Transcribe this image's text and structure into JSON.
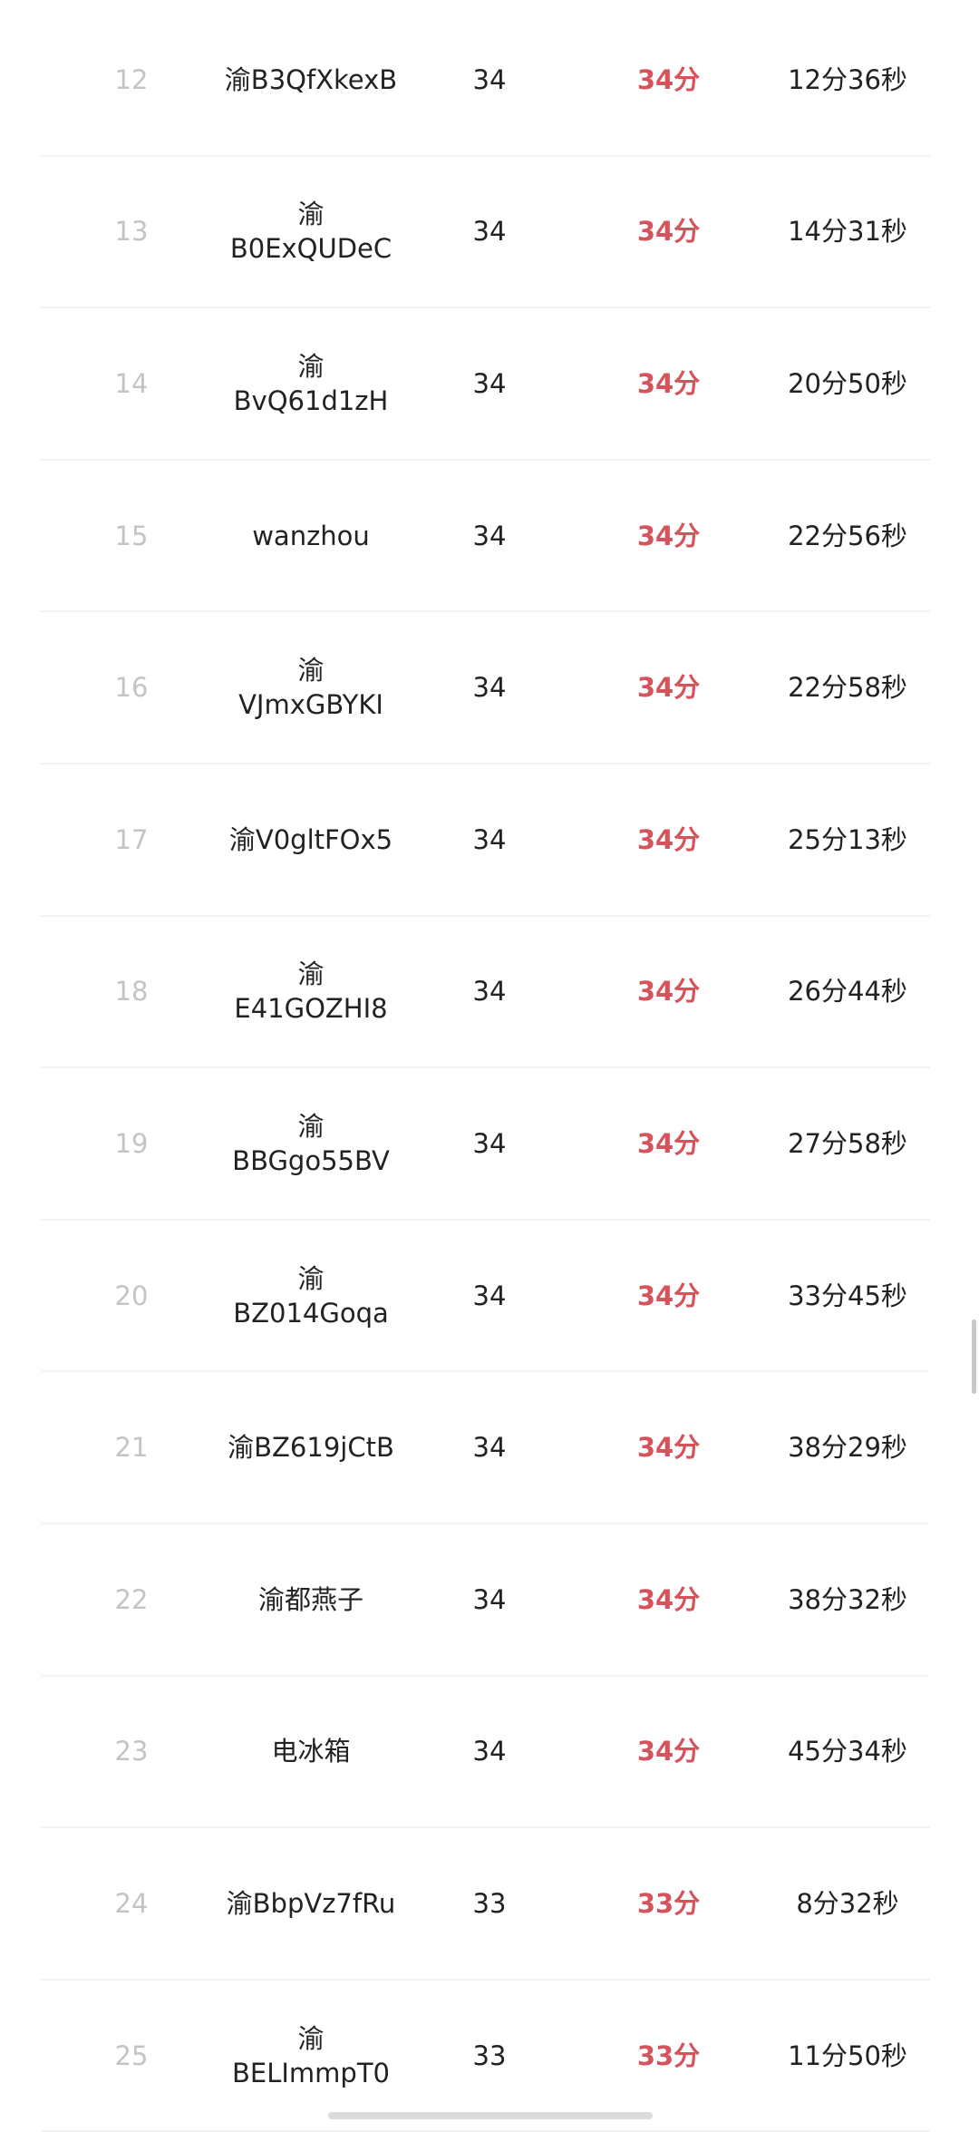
{
  "rows": [
    {
      "rank": "12",
      "name": "渝B3QfXkexB",
      "score": "34",
      "points": "34分",
      "time": "12分36秒"
    },
    {
      "rank": "13",
      "name": "渝\nB0ExQUDeC",
      "score": "34",
      "points": "34分",
      "time": "14分31秒"
    },
    {
      "rank": "14",
      "name": "渝\nBvQ61d1zH",
      "score": "34",
      "points": "34分",
      "time": "20分50秒"
    },
    {
      "rank": "15",
      "name": "wanzhou",
      "score": "34",
      "points": "34分",
      "time": "22分56秒"
    },
    {
      "rank": "16",
      "name": "渝\nVJmxGBYKI",
      "score": "34",
      "points": "34分",
      "time": "22分58秒"
    },
    {
      "rank": "17",
      "name": "渝V0gltFOx5",
      "score": "34",
      "points": "34分",
      "time": "25分13秒"
    },
    {
      "rank": "18",
      "name": "渝\nE41GOZHI8",
      "score": "34",
      "points": "34分",
      "time": "26分44秒"
    },
    {
      "rank": "19",
      "name": "渝\nBBGgo55BV",
      "score": "34",
      "points": "34分",
      "time": "27分58秒"
    },
    {
      "rank": "20",
      "name": "渝\nBZ014Goqa",
      "score": "34",
      "points": "34分",
      "time": "33分45秒"
    },
    {
      "rank": "21",
      "name": "渝BZ619jCtB",
      "score": "34",
      "points": "34分",
      "time": "38分29秒"
    },
    {
      "rank": "22",
      "name": "渝都燕子",
      "score": "34",
      "points": "34分",
      "time": "38分32秒"
    },
    {
      "rank": "23",
      "name": "电冰箱",
      "score": "34",
      "points": "34分",
      "time": "45分34秒"
    },
    {
      "rank": "24",
      "name": "渝BbpVz7fRu",
      "score": "33",
      "points": "33分",
      "time": "8分32秒"
    },
    {
      "rank": "25",
      "name": "渝\nBELImmpT0",
      "score": "33",
      "points": "33分",
      "time": "11分50秒"
    }
  ],
  "colors": {
    "points": "#d5535b",
    "rank": "#c4c4c4",
    "text": "#222222"
  }
}
